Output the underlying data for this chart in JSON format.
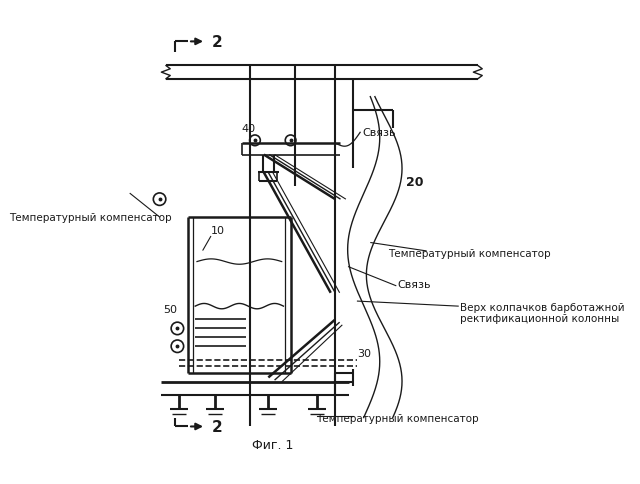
{
  "title": "Фиг. 1",
  "bg": "#ffffff",
  "lc": "#1a1a1a",
  "tc": "#1a1a1a",
  "L10": "10",
  "L20": "20",
  "L30": "30",
  "L40": "40",
  "L50": "50",
  "L2": "2",
  "svyaz_top": "Связь",
  "svyaz_mid": "Связь",
  "temp_left": "Температурный компенсатор",
  "temp_right": "Температурный компенсатор",
  "temp_bot": "Температурный компенсатор",
  "verkh": "Верх колпачков барботажной\nректификационной колонны"
}
